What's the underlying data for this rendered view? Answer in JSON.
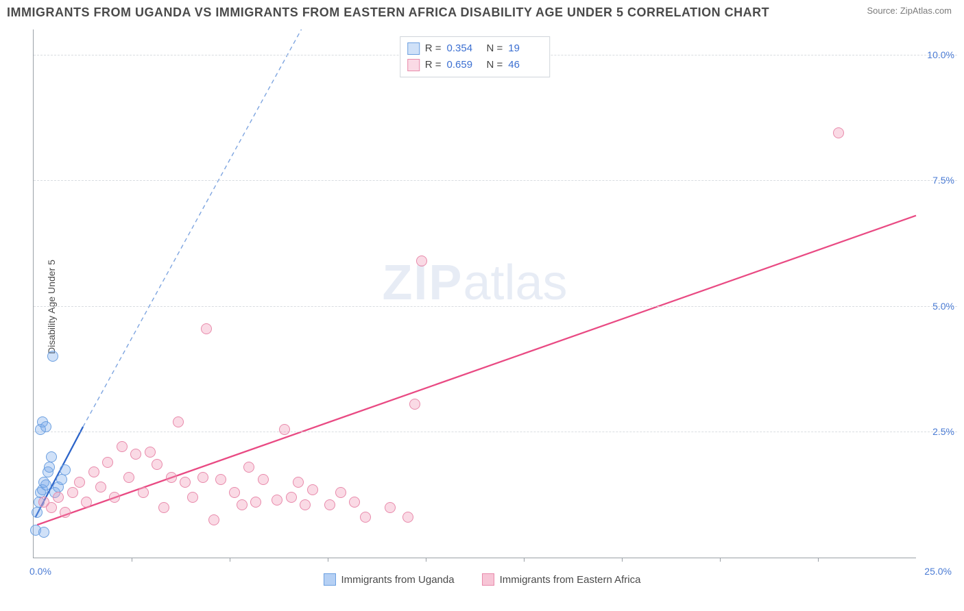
{
  "header": {
    "title": "IMMIGRANTS FROM UGANDA VS IMMIGRANTS FROM EASTERN AFRICA DISABILITY AGE UNDER 5 CORRELATION CHART",
    "source": "Source: ZipAtlas.com"
  },
  "chart": {
    "type": "scatter",
    "y_axis_label": "Disability Age Under 5",
    "watermark": "ZIPatlas",
    "background_color": "#ffffff",
    "grid_color": "#d8dce0",
    "axis_color": "#9aa0a6",
    "tick_label_color": "#4a7bd4",
    "x_range": [
      0,
      25
    ],
    "y_range": [
      0,
      10.5
    ],
    "y_ticks": [
      {
        "v": 2.5,
        "label": "2.5%"
      },
      {
        "v": 5.0,
        "label": "5.0%"
      },
      {
        "v": 7.5,
        "label": "7.5%"
      },
      {
        "v": 10.0,
        "label": "10.0%"
      }
    ],
    "x_major_ticks": [
      0,
      25
    ],
    "x_tick_labels": [
      {
        "v": 0,
        "label": "0.0%"
      },
      {
        "v": 25,
        "label": "25.0%"
      }
    ],
    "x_minor_ticks": [
      2.77,
      5.55,
      8.33,
      11.11,
      13.88,
      16.66,
      19.44,
      22.22
    ],
    "marker_radius": 8,
    "series": [
      {
        "id": "uganda",
        "label": "Immigrants from Uganda",
        "fill": "rgba(120,170,235,0.35)",
        "stroke": "#6b9fe0",
        "line_color": "#2c64c9",
        "line_dashed": true,
        "r_value": "0.354",
        "n_value": "19",
        "trend": {
          "x1": 0.05,
          "y1": 0.8,
          "x2_solid": 1.4,
          "y2_solid": 2.6,
          "x2_dash": 9.7,
          "y2_dash": 13.2
        },
        "points": [
          [
            0.05,
            0.55
          ],
          [
            0.1,
            0.9
          ],
          [
            0.15,
            1.1
          ],
          [
            0.2,
            1.3
          ],
          [
            0.25,
            1.35
          ],
          [
            0.3,
            1.5
          ],
          [
            0.35,
            1.45
          ],
          [
            0.4,
            1.7
          ],
          [
            0.45,
            1.8
          ],
          [
            0.5,
            2.0
          ],
          [
            0.2,
            2.55
          ],
          [
            0.25,
            2.7
          ],
          [
            0.35,
            2.6
          ],
          [
            0.6,
            1.3
          ],
          [
            0.7,
            1.4
          ],
          [
            0.8,
            1.55
          ],
          [
            0.9,
            1.75
          ],
          [
            0.55,
            4.0
          ],
          [
            0.3,
            0.5
          ]
        ]
      },
      {
        "id": "eastern_africa",
        "label": "Immigrants from Eastern Africa",
        "fill": "rgba(240,150,180,0.35)",
        "stroke": "#e88aab",
        "line_color": "#e94a83",
        "line_dashed": false,
        "r_value": "0.659",
        "n_value": "46",
        "trend": {
          "x1": 0.1,
          "y1": 0.65,
          "x2_solid": 25,
          "y2_solid": 6.8
        },
        "points": [
          [
            0.3,
            1.1
          ],
          [
            0.5,
            1.0
          ],
          [
            0.7,
            1.2
          ],
          [
            0.9,
            0.9
          ],
          [
            1.1,
            1.3
          ],
          [
            1.3,
            1.5
          ],
          [
            1.5,
            1.1
          ],
          [
            1.7,
            1.7
          ],
          [
            1.9,
            1.4
          ],
          [
            2.1,
            1.9
          ],
          [
            2.3,
            1.2
          ],
          [
            2.5,
            2.2
          ],
          [
            2.7,
            1.6
          ],
          [
            2.9,
            2.05
          ],
          [
            3.1,
            1.3
          ],
          [
            3.3,
            2.1
          ],
          [
            3.5,
            1.85
          ],
          [
            3.7,
            1.0
          ],
          [
            3.9,
            1.6
          ],
          [
            4.1,
            2.7
          ],
          [
            4.3,
            1.5
          ],
          [
            4.5,
            1.2
          ],
          [
            4.8,
            1.6
          ],
          [
            4.9,
            4.55
          ],
          [
            5.1,
            0.75
          ],
          [
            5.3,
            1.55
          ],
          [
            5.7,
            1.3
          ],
          [
            5.9,
            1.05
          ],
          [
            6.1,
            1.8
          ],
          [
            6.3,
            1.1
          ],
          [
            6.5,
            1.55
          ],
          [
            6.9,
            1.15
          ],
          [
            7.1,
            2.55
          ],
          [
            7.3,
            1.2
          ],
          [
            7.5,
            1.5
          ],
          [
            7.7,
            1.05
          ],
          [
            7.9,
            1.35
          ],
          [
            8.4,
            1.05
          ],
          [
            8.7,
            1.3
          ],
          [
            9.1,
            1.1
          ],
          [
            9.4,
            0.8
          ],
          [
            10.1,
            1.0
          ],
          [
            10.6,
            0.8
          ],
          [
            10.8,
            3.05
          ],
          [
            11.0,
            5.9
          ],
          [
            22.8,
            8.45
          ]
        ]
      }
    ]
  },
  "legend_bottom": {
    "items": [
      {
        "label": "Immigrants from Uganda",
        "fill": "rgba(120,170,235,0.55)",
        "stroke": "#6b9fe0"
      },
      {
        "label": "Immigrants from Eastern Africa",
        "fill": "rgba(240,150,180,0.55)",
        "stroke": "#e88aab"
      }
    ]
  }
}
